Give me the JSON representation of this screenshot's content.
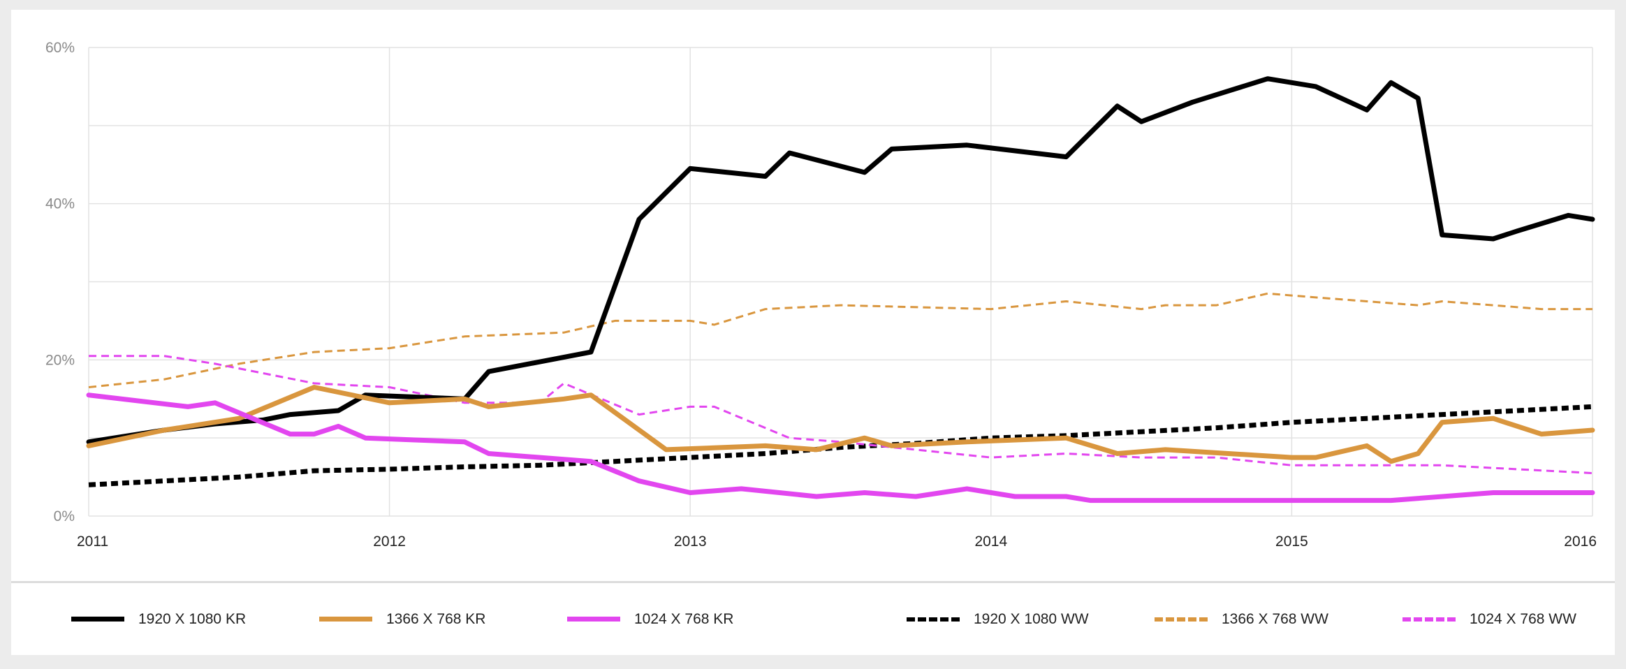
{
  "chart_data": {
    "type": "line",
    "title": "",
    "xlabel": "",
    "ylabel": "",
    "xlim": [
      2011,
      2016
    ],
    "ylim": [
      0,
      60
    ],
    "x_ticks": [
      2011,
      2012,
      2013,
      2014,
      2015,
      2016
    ],
    "x_tick_labels": [
      "2011",
      "2012",
      "2013",
      "2014",
      "2015",
      "2016"
    ],
    "y_ticks": [
      0,
      20,
      40,
      60
    ],
    "y_tick_labels": [
      "0%",
      "20%",
      "40%",
      "60%"
    ],
    "grid": true,
    "legend_position": "bottom",
    "series": [
      {
        "name": "1920 X 1080 KR",
        "color": "#000000",
        "style": "solid",
        "x": [
          2011.0,
          2011.25,
          2011.42,
          2011.58,
          2011.67,
          2011.83,
          2011.92,
          2012.25,
          2012.33,
          2012.67,
          2012.83,
          2013.0,
          2013.25,
          2013.33,
          2013.58,
          2013.67,
          2013.92,
          2014.25,
          2014.42,
          2014.5,
          2014.67,
          2014.92,
          2015.08,
          2015.25,
          2015.33,
          2015.42,
          2015.5,
          2015.67,
          2015.75,
          2015.92,
          2016.0
        ],
        "y": [
          9.5,
          11.0,
          11.8,
          12.3,
          13.0,
          13.5,
          15.5,
          15.0,
          18.5,
          21.0,
          38.0,
          44.5,
          43.5,
          46.5,
          44.0,
          47.0,
          47.5,
          46.0,
          52.5,
          50.5,
          53.0,
          56.0,
          55.0,
          52.0,
          55.5,
          53.5,
          36.0,
          35.5,
          36.5,
          38.5,
          38.0
        ]
      },
      {
        "name": "1366 X 768 KR",
        "color": "#d9963e",
        "style": "solid",
        "x": [
          2011.0,
          2011.25,
          2011.5,
          2011.75,
          2012.0,
          2012.25,
          2012.33,
          2012.58,
          2012.67,
          2012.92,
          2013.25,
          2013.42,
          2013.58,
          2013.67,
          2013.92,
          2014.25,
          2014.42,
          2014.58,
          2015.0,
          2015.08,
          2015.25,
          2015.33,
          2015.42,
          2015.5,
          2015.67,
          2015.83,
          2016.0
        ],
        "y": [
          9.0,
          11.0,
          12.5,
          16.5,
          14.5,
          15.0,
          14.0,
          15.0,
          15.5,
          8.5,
          9.0,
          8.5,
          10.0,
          9.0,
          9.5,
          10.0,
          8.0,
          8.5,
          7.5,
          7.5,
          9.0,
          7.0,
          8.0,
          12.0,
          12.5,
          10.5,
          11.0
        ]
      },
      {
        "name": "1024 X 768 KR",
        "color": "#e246ef",
        "style": "solid",
        "x": [
          2011.0,
          2011.33,
          2011.42,
          2011.67,
          2011.75,
          2011.83,
          2011.92,
          2012.25,
          2012.33,
          2012.67,
          2012.83,
          2013.0,
          2013.17,
          2013.42,
          2013.58,
          2013.75,
          2013.92,
          2014.08,
          2014.25,
          2014.33,
          2015.0,
          2015.33,
          2015.67,
          2015.83,
          2016.0
        ],
        "y": [
          15.5,
          14.0,
          14.5,
          10.5,
          10.5,
          11.5,
          10.0,
          9.5,
          8.0,
          7.0,
          4.5,
          3.0,
          3.5,
          2.5,
          3.0,
          2.5,
          3.5,
          2.5,
          2.5,
          2.0,
          2.0,
          2.0,
          3.0,
          3.0,
          3.0
        ]
      },
      {
        "name": "1920 X 1080 WW",
        "color": "#000000",
        "style": "dotted",
        "x": [
          2011.0,
          2011.25,
          2011.5,
          2011.75,
          2012.0,
          2012.25,
          2012.5,
          2012.75,
          2013.0,
          2013.25,
          2013.5,
          2013.75,
          2014.0,
          2014.25,
          2014.5,
          2014.75,
          2015.0,
          2015.25,
          2015.5,
          2015.75,
          2016.0
        ],
        "y": [
          4.0,
          4.5,
          5.0,
          5.8,
          6.0,
          6.3,
          6.5,
          7.0,
          7.5,
          8.0,
          8.8,
          9.3,
          10.0,
          10.3,
          10.8,
          11.3,
          12.0,
          12.5,
          13.0,
          13.5,
          14.0
        ]
      },
      {
        "name": "1366 X 768 WW",
        "color": "#d9963e",
        "style": "dotted",
        "x": [
          2011.0,
          2011.25,
          2011.5,
          2011.75,
          2012.0,
          2012.25,
          2012.58,
          2012.75,
          2013.0,
          2013.08,
          2013.25,
          2013.5,
          2014.0,
          2014.25,
          2014.5,
          2014.58,
          2014.75,
          2014.92,
          2015.08,
          2015.25,
          2015.42,
          2015.5,
          2015.67,
          2015.83,
          2016.0
        ],
        "y": [
          16.5,
          17.5,
          19.5,
          21.0,
          21.5,
          23.0,
          23.5,
          25.0,
          25.0,
          24.5,
          26.5,
          27.0,
          26.5,
          27.5,
          26.5,
          27.0,
          27.0,
          28.5,
          28.0,
          27.5,
          27.0,
          27.5,
          27.0,
          26.5,
          26.5
        ]
      },
      {
        "name": "1024 X 768 WW",
        "color": "#e246ef",
        "style": "dotted",
        "x": [
          2011.0,
          2011.25,
          2011.42,
          2011.75,
          2012.0,
          2012.25,
          2012.5,
          2012.58,
          2012.83,
          2013.0,
          2013.08,
          2013.33,
          2013.5,
          2014.0,
          2014.25,
          2014.5,
          2014.75,
          2015.0,
          2015.5,
          2016.0
        ],
        "y": [
          20.5,
          20.5,
          19.5,
          17.0,
          16.5,
          14.5,
          14.5,
          17.0,
          13.0,
          14.0,
          14.0,
          10.0,
          9.5,
          7.5,
          8.0,
          7.5,
          7.5,
          6.5,
          6.5,
          5.5
        ]
      }
    ]
  }
}
